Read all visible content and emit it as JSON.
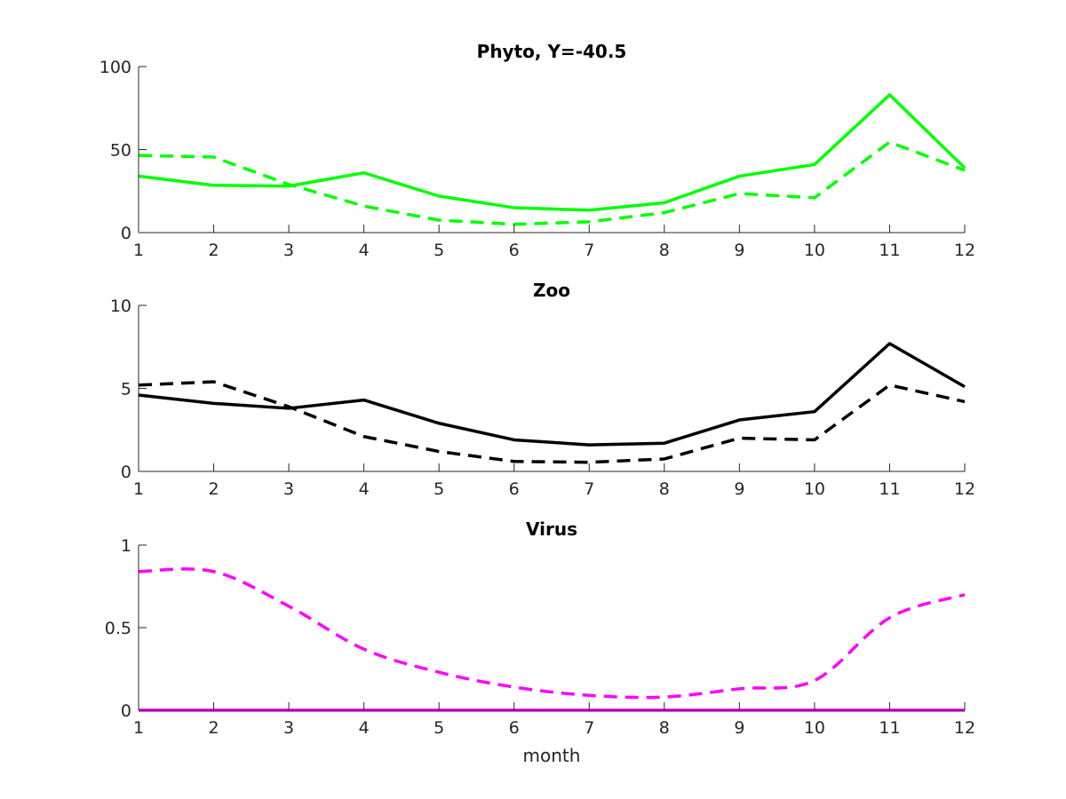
{
  "chart_data": [
    {
      "type": "line",
      "title": "Phyto, Y=-40.5",
      "xlabel": "",
      "ylabel": "",
      "x": [
        1,
        2,
        3,
        4,
        5,
        6,
        7,
        8,
        9,
        10,
        11,
        12
      ],
      "xlim": [
        1,
        12
      ],
      "ylim": [
        0,
        100
      ],
      "xticks": [
        "1",
        "2",
        "3",
        "4",
        "5",
        "6",
        "7",
        "8",
        "9",
        "10",
        "11",
        "12"
      ],
      "yticks": [
        0,
        50,
        100
      ],
      "ytick_labels": [
        "0",
        "50",
        "100"
      ],
      "grid": false,
      "series": [
        {
          "name": "solid",
          "style": "solid",
          "color": "#00ff00",
          "values": [
            34,
            28.5,
            28,
            36,
            22,
            15,
            13.5,
            18,
            34,
            41,
            83,
            39
          ]
        },
        {
          "name": "dashed",
          "style": "dashed",
          "color": "#00ff00",
          "values": [
            46.5,
            45.5,
            29,
            16,
            7.5,
            5,
            6.5,
            12,
            23.5,
            21,
            54.5,
            37.5
          ]
        }
      ]
    },
    {
      "type": "line",
      "title": "Zoo",
      "xlabel": "",
      "ylabel": "",
      "x": [
        1,
        2,
        3,
        4,
        5,
        6,
        7,
        8,
        9,
        10,
        11,
        12
      ],
      "xlim": [
        1,
        12
      ],
      "ylim": [
        0,
        10
      ],
      "xticks": [
        "1",
        "2",
        "3",
        "4",
        "5",
        "6",
        "7",
        "8",
        "9",
        "10",
        "11",
        "12"
      ],
      "yticks": [
        0,
        5,
        10
      ],
      "ytick_labels": [
        "0",
        "5",
        "10"
      ],
      "grid": false,
      "series": [
        {
          "name": "solid",
          "style": "solid",
          "color": "#000000",
          "values": [
            4.6,
            4.1,
            3.8,
            4.3,
            2.9,
            1.9,
            1.6,
            1.7,
            3.1,
            3.6,
            7.7,
            5.1
          ]
        },
        {
          "name": "dashed",
          "style": "dashed",
          "color": "#000000",
          "values": [
            5.2,
            5.4,
            3.9,
            2.1,
            1.2,
            0.6,
            0.55,
            0.75,
            2.0,
            1.9,
            5.2,
            4.2
          ]
        }
      ]
    },
    {
      "type": "line",
      "title": "Virus",
      "xlabel": "month",
      "ylabel": "",
      "x": [
        1,
        2,
        3,
        4,
        5,
        6,
        7,
        8,
        9,
        10,
        11,
        12
      ],
      "xlim": [
        1,
        12
      ],
      "ylim": [
        0,
        1
      ],
      "xticks": [
        "1",
        "2",
        "3",
        "4",
        "5",
        "6",
        "7",
        "8",
        "9",
        "10",
        "11",
        "12"
      ],
      "yticks": [
        0,
        0.5,
        1
      ],
      "ytick_labels": [
        "0",
        "0.5",
        "1"
      ],
      "grid": false,
      "series": [
        {
          "name": "solid",
          "style": "solid",
          "color": "#ff00ff",
          "values": [
            0,
            0,
            0,
            0,
            0,
            0,
            0,
            0,
            0,
            0,
            0,
            0
          ]
        },
        {
          "name": "dashed",
          "style": "dashed",
          "color": "#ff00ff",
          "smooth": true,
          "values": [
            0.84,
            0.84,
            0.63,
            0.37,
            0.23,
            0.14,
            0.09,
            0.08,
            0.13,
            0.18,
            0.56,
            0.7
          ]
        }
      ]
    }
  ]
}
